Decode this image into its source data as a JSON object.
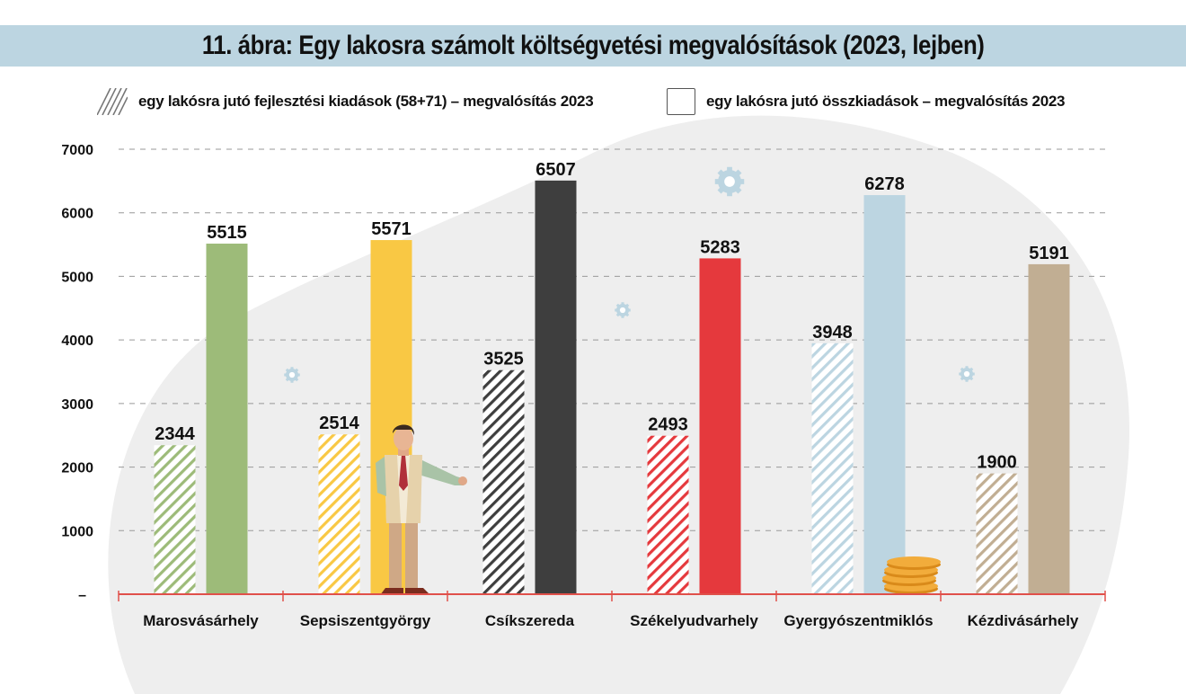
{
  "title": "11. ábra: Egy lakosra számolt költségvetési megvalósítások (2023, lejben)",
  "colors": {
    "title_bg": "#bcd5e1",
    "axis_line": "#e0504a",
    "grid": "#999999",
    "backdrop": "#eeeeee",
    "gear": "#bcd5e1"
  },
  "chart_data": {
    "type": "bar",
    "title": "11. ábra: Egy lakosra számolt költségvetési megvalósítások (2023, lejben)",
    "xlabel": "",
    "ylabel": "",
    "ylim": [
      0,
      7000
    ],
    "yticks": [
      {
        "value": 0,
        "label": "–"
      },
      {
        "value": 1000,
        "label": "1000"
      },
      {
        "value": 2000,
        "label": "2000"
      },
      {
        "value": 3000,
        "label": "3000"
      },
      {
        "value": 4000,
        "label": "4000"
      },
      {
        "value": 5000,
        "label": "5000"
      },
      {
        "value": 6000,
        "label": "6000"
      },
      {
        "value": 7000,
        "label": "7000"
      }
    ],
    "grid": true,
    "legend_position": "top",
    "categories": [
      "Marosvásárhely",
      "Sepsiszentgyörgy",
      "Csíkszereda",
      "Székelyudvarhely",
      "Gyergyószentmiklós",
      "Kézdivásárhely"
    ],
    "category_colors": [
      "#9dbb79",
      "#f9c844",
      "#3e3e3e",
      "#e5393d",
      "#bcd5e1",
      "#c1ae93"
    ],
    "series": [
      {
        "name": "egy lakósra jutó fejlesztési kiadások (58+71) – megvalósítás 2023",
        "style": "hatched",
        "values": [
          2344,
          2514,
          3525,
          2493,
          3948,
          1900
        ]
      },
      {
        "name": "egy lakósra jutó összkiadások – megvalósítás 2023",
        "style": "solid",
        "values": [
          5515,
          5571,
          6507,
          5283,
          6278,
          5191
        ]
      }
    ]
  }
}
